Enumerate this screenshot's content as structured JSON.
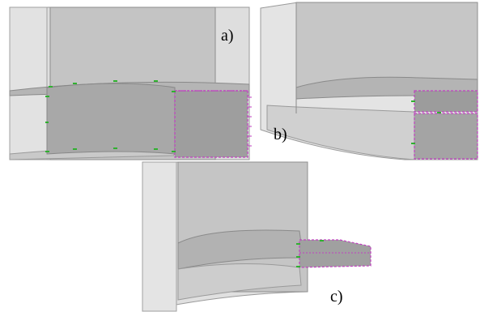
{
  "figure": {
    "panels": [
      {
        "id": "a",
        "label": "a)"
      },
      {
        "id": "b",
        "label": "b)"
      },
      {
        "id": "c",
        "label": "c)"
      }
    ],
    "colors": {
      "body_fill": "#c8c8c8",
      "body_dark": "#a9a9a9",
      "edge": "#7a7a7a",
      "mesh_node_magenta": "#c040c0",
      "mesh_node_green": "#2fb02f"
    }
  }
}
